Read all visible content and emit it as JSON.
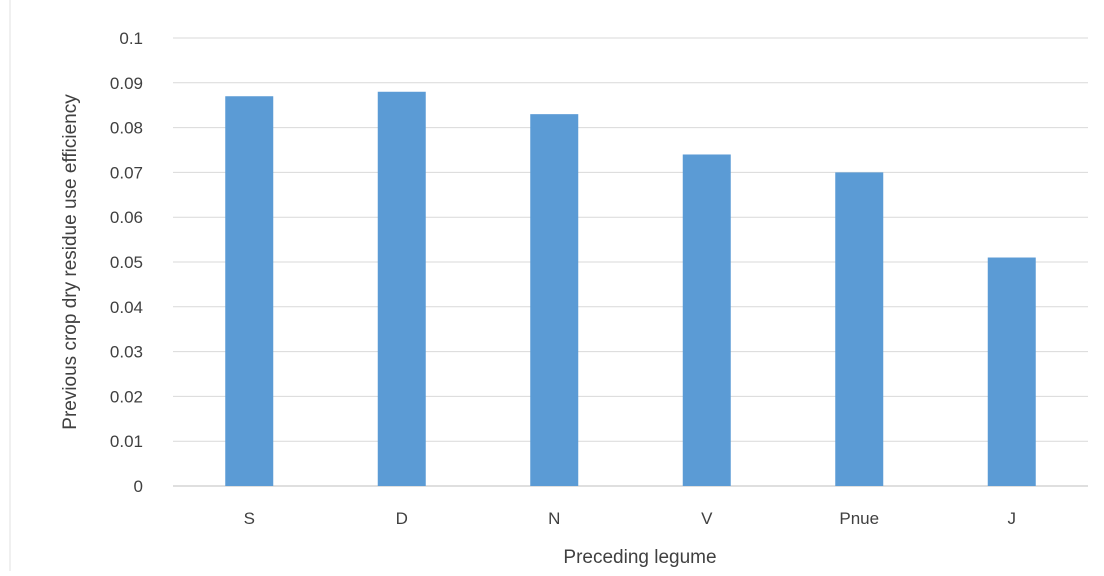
{
  "chart_data": {
    "type": "bar",
    "title": "",
    "xlabel": "Preceding legume",
    "ylabel": "Previous crop dry residue use efficiency",
    "categories": [
      "S",
      "D",
      "N",
      "V",
      "Pnue",
      "J"
    ],
    "values": [
      0.087,
      0.088,
      0.083,
      0.074,
      0.07,
      0.051
    ],
    "ylim": [
      0,
      0.1
    ],
    "yticks": [
      "0",
      "0.01",
      "0.02",
      "0.03",
      "0.04",
      "0.05",
      "0.06",
      "0.07",
      "0.08",
      "0.09",
      "0.1"
    ],
    "grid": true,
    "legend": "none",
    "colors": {
      "bar": "#5b9bd5",
      "grid": "#d9d9d9",
      "axis": "#bfbfbf",
      "text": "#404040"
    }
  }
}
